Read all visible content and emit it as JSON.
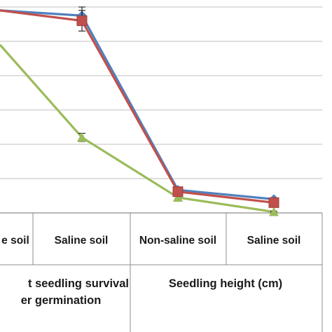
{
  "chart_data": {
    "type": "line",
    "title": "",
    "categories": [
      "Non-saline soil",
      "Saline soil",
      "Non-saline soil",
      "Saline soil"
    ],
    "groups": [
      {
        "label_lines": [
          "Percent seedling survival",
          "after germination"
        ]
      },
      {
        "label_lines": [
          "Seedling height (cm)"
        ]
      }
    ],
    "category_labels_visible": [
      "e soil",
      "Saline soil",
      "Non-saline soil",
      "Saline soil"
    ],
    "group_labels_visible": [
      [
        "t seedling survival",
        "er germination"
      ],
      [
        "Seedling height (cm)"
      ]
    ],
    "grid": true,
    "legend": "none",
    "ylim": [
      0,
      6
    ],
    "y_gridlines": [
      1,
      2,
      3,
      4,
      5,
      6
    ],
    "series": [
      {
        "color": "#4f81bd",
        "marker": "diamond",
        "values": [
          5.9,
          5.75,
          0.67,
          0.4
        ],
        "error": [
          0,
          0.25,
          0.05,
          0.04
        ]
      },
      {
        "color": "#c0504d",
        "marker": "square",
        "values": [
          5.9,
          5.6,
          0.62,
          0.3
        ],
        "error": [
          0,
          0.3,
          0.05,
          0.04
        ]
      },
      {
        "color": "#9bbb59",
        "marker": "triangle",
        "values": [
          4.9,
          2.2,
          0.45,
          0.03
        ],
        "error": [
          0,
          0.12,
          0.04,
          0.02
        ]
      }
    ]
  }
}
